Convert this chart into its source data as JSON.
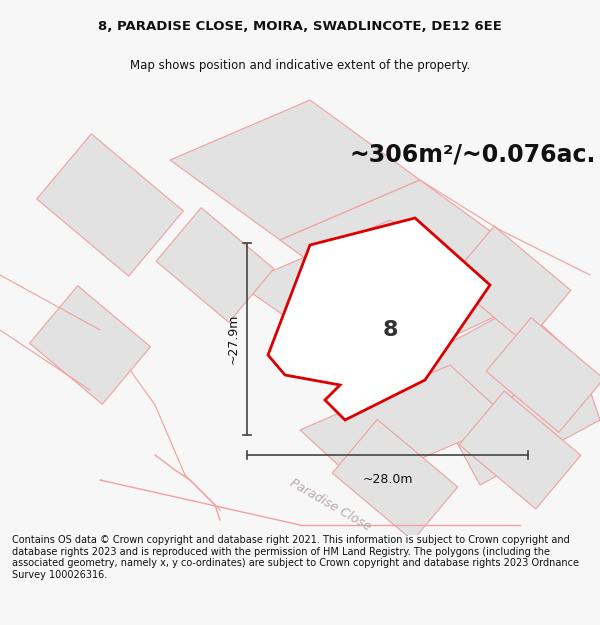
{
  "title_line1": "8, PARADISE CLOSE, MOIRA, SWADLINCOTE, DE12 6EE",
  "title_line2": "Map shows position and indicative extent of the property.",
  "area_label": "~306m²/~0.076ac.",
  "property_number": "8",
  "dim_vertical": "~27.9m",
  "dim_horizontal": "~28.0m",
  "street_label": "Paradise Close",
  "footer": "Contains OS data © Crown copyright and database right 2021. This information is subject to Crown copyright and database rights 2023 and is reproduced with the permission of HM Land Registry. The polygons (including the associated geometry, namely x, y co-ordinates) are subject to Crown copyright and database rights 2023 Ordnance Survey 100026316.",
  "bg_color": "#f7f7f7",
  "map_bg": "#ffffff",
  "plot_fill": "#e6e6e6",
  "plot_outline": "#dd0000",
  "neighbor_fill": "#e2e2e2",
  "neighbor_outline": "#f0a0a0",
  "road_color": "#f2c8c8",
  "dim_line_color": "#444444",
  "street_label_color": "#b8aaaa",
  "title_fontsize": 9.5,
  "subtitle_fontsize": 8.5,
  "area_fontsize": 17,
  "dim_fontsize": 9,
  "street_fontsize": 9,
  "footer_fontsize": 7,
  "num_fontsize": 16
}
